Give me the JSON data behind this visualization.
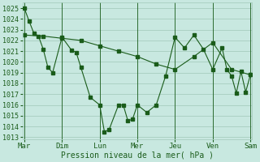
{
  "bg_color": "#c8e8e0",
  "grid_color": "#a0c8b8",
  "line_color": "#1a5c1a",
  "xlabel": "Pression niveau de la mer( hPa )",
  "ylim_min": 1012.8,
  "ylim_max": 1025.5,
  "yticks": [
    1013,
    1014,
    1015,
    1016,
    1017,
    1018,
    1019,
    1020,
    1021,
    1022,
    1023,
    1024,
    1025
  ],
  "day_labels": [
    "Mar",
    "Dim",
    "Lun",
    "Mer",
    "Jeu",
    "Ven",
    "Sam"
  ],
  "x_day_positions": [
    0,
    4,
    8,
    12,
    16,
    20,
    24
  ],
  "series1_x": [
    0,
    0.5,
    1.0,
    1.5,
    2.0,
    2.5,
    3.0,
    4.0,
    5.0,
    5.5,
    6.0,
    7.0,
    8.0,
    8.5,
    9.0,
    10.0,
    10.5,
    11.0,
    11.5,
    12.0,
    13.0,
    14.0,
    15.0,
    16.0,
    17.0,
    18.0,
    19.0,
    20.0,
    21.0,
    21.5,
    22.0,
    22.5,
    23.0,
    23.5,
    24.0
  ],
  "series1_y": [
    1025.0,
    1023.8,
    1022.7,
    1022.4,
    1021.2,
    1019.5,
    1019.0,
    1022.3,
    1021.1,
    1020.9,
    1019.5,
    1016.7,
    1016.0,
    1013.5,
    1013.7,
    1016.0,
    1016.0,
    1014.5,
    1014.7,
    1016.0,
    1015.3,
    1016.0,
    1018.7,
    1022.3,
    1021.3,
    1022.5,
    1021.2,
    1019.3,
    1021.3,
    1019.3,
    1018.7,
    1017.1,
    1019.1,
    1017.2,
    1018.8
  ],
  "series2_x": [
    0,
    2.0,
    4.0,
    6.0,
    8.0,
    10.0,
    12.0,
    14.0,
    16.0,
    18.0,
    20.0,
    22.0,
    24.0
  ],
  "series2_y": [
    1022.5,
    1022.4,
    1022.2,
    1022.0,
    1021.5,
    1021.0,
    1020.5,
    1019.8,
    1019.3,
    1020.5,
    1021.8,
    1019.3,
    1018.8
  ]
}
